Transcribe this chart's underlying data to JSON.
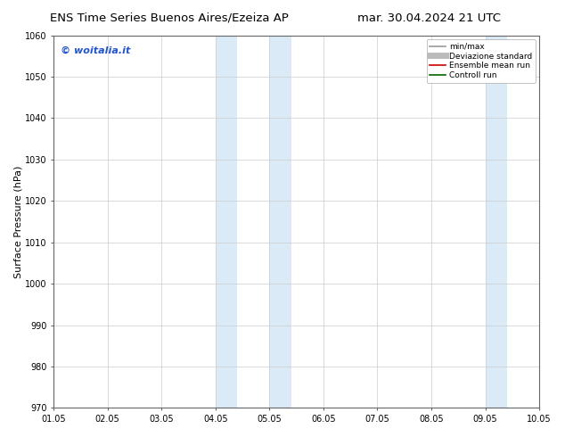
{
  "title_left": "ENS Time Series Buenos Aires/Ezeiza AP",
  "title_right": "mar. 30.04.2024 21 UTC",
  "ylabel": "Surface Pressure (hPa)",
  "ylim": [
    970,
    1060
  ],
  "yticks": [
    970,
    980,
    990,
    1000,
    1010,
    1020,
    1030,
    1040,
    1050,
    1060
  ],
  "xtick_labels": [
    "01.05",
    "02.05",
    "03.05",
    "04.05",
    "05.05",
    "06.05",
    "07.05",
    "08.05",
    "09.05",
    "10.05"
  ],
  "shaded_bands": [
    {
      "xmin": 3.0,
      "xmax": 3.4,
      "color": "#daeaf7"
    },
    {
      "xmin": 4.0,
      "xmax": 4.4,
      "color": "#daeaf7"
    },
    {
      "xmin": 8.0,
      "xmax": 8.4,
      "color": "#daeaf7"
    },
    {
      "xmin": 9.0,
      "xmax": 9.4,
      "color": "#daeaf7"
    }
  ],
  "watermark": "© woitalia.it",
  "watermark_color": "#2255cc",
  "legend_entries": [
    {
      "label": "min/max",
      "color": "#999999",
      "lw": 1.2
    },
    {
      "label": "Deviazione standard",
      "color": "#bbbbbb",
      "lw": 5
    },
    {
      "label": "Ensemble mean run",
      "color": "#cc0000",
      "lw": 1.2
    },
    {
      "label": "Controll run",
      "color": "#006600",
      "lw": 1.2
    }
  ],
  "background_color": "#ffffff",
  "plot_bg_color": "#ffffff",
  "title_fontsize": 9.5,
  "tick_fontsize": 7,
  "ylabel_fontsize": 8,
  "legend_fontsize": 6.5,
  "watermark_fontsize": 8
}
